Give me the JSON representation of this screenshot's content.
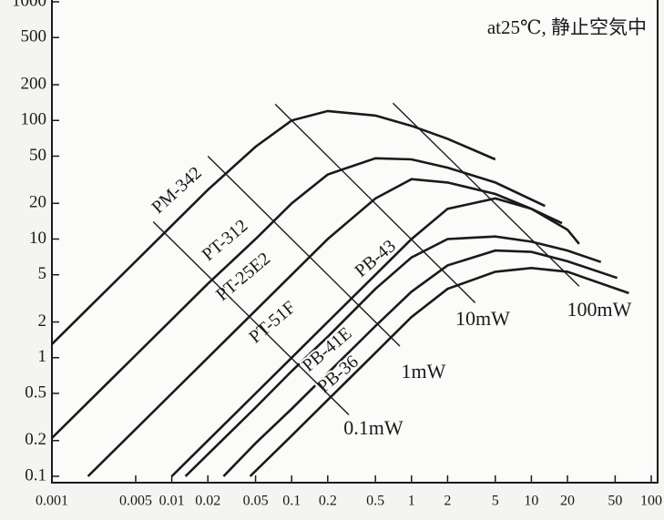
{
  "chart_data": {
    "type": "line",
    "log_x": true,
    "log_y": true,
    "annotation": "at25℃, 静止空気中",
    "xlim": [
      0.001,
      100
    ],
    "ylim": [
      0.1,
      1000
    ],
    "xticks": [
      0.001,
      0.005,
      0.01,
      0.02,
      0.05,
      0.1,
      0.2,
      0.5,
      1,
      2,
      5,
      10,
      20,
      50,
      100
    ],
    "yticks": [
      1000,
      500,
      200,
      100,
      50,
      20,
      10,
      5,
      2,
      1,
      0.5,
      0.2,
      0.1
    ],
    "series": [
      {
        "name": "PM-342",
        "color": "#1a1a1a",
        "x": [
          0.001,
          0.002,
          0.005,
          0.01,
          0.02,
          0.05,
          0.1,
          0.2,
          0.5,
          1,
          2,
          5
        ],
        "values": [
          1.3,
          2.6,
          6.5,
          13,
          26,
          60,
          100,
          120,
          110,
          90,
          70,
          47
        ]
      },
      {
        "name": "PT-312",
        "color": "#1a1a1a",
        "x": [
          0.001,
          0.002,
          0.005,
          0.01,
          0.02,
          0.05,
          0.1,
          0.2,
          0.5,
          1,
          2,
          5,
          13
        ],
        "values": [
          0.21,
          0.42,
          1.05,
          2.1,
          4.2,
          10,
          20,
          35,
          48,
          47,
          40,
          30,
          19
        ]
      },
      {
        "name": "PT-25E2",
        "color": "#1a1a1a",
        "x": [
          0.002,
          0.005,
          0.01,
          0.02,
          0.05,
          0.1,
          0.2,
          0.5,
          1,
          2,
          5,
          10,
          18
        ],
        "values": [
          0.1,
          0.25,
          0.5,
          1,
          2.5,
          5,
          10,
          22,
          32,
          30,
          24,
          18,
          13.6
        ]
      },
      {
        "name": "PT-51F",
        "color": "#1a1a1a",
        "x": [
          0.01,
          0.02,
          0.05,
          0.1,
          0.2,
          0.5,
          1,
          2,
          5,
          10,
          20,
          25
        ],
        "values": [
          0.1,
          0.2,
          0.5,
          1,
          2,
          5,
          10,
          18,
          22,
          18,
          12,
          9.1
        ]
      },
      {
        "name": "PB-43",
        "color": "#1a1a1a",
        "x": [
          0.013,
          0.05,
          0.1,
          0.2,
          0.5,
          1,
          2,
          5,
          10,
          20,
          38
        ],
        "values": [
          0.1,
          0.38,
          0.77,
          1.5,
          3.8,
          7,
          10,
          10.5,
          9.5,
          8,
          6.4
        ]
      },
      {
        "name": "PB-41E",
        "color": "#1a1a1a",
        "x": [
          0.027,
          0.05,
          0.1,
          0.2,
          0.5,
          1,
          2,
          5,
          10,
          20,
          52
        ],
        "values": [
          0.1,
          0.19,
          0.37,
          0.74,
          1.85,
          3.6,
          6,
          8,
          7.8,
          6.5,
          4.7
        ]
      },
      {
        "name": "PB-36",
        "color": "#1a1a1a",
        "x": [
          0.045,
          0.1,
          0.2,
          0.5,
          1,
          2,
          5,
          10,
          20,
          65
        ],
        "values": [
          0.1,
          0.22,
          0.44,
          1.1,
          2.2,
          3.8,
          5.3,
          5.7,
          5.3,
          3.5
        ]
      }
    ],
    "power_lines": [
      {
        "name": "0.1mW",
        "x": [
          0.007,
          0.3
        ],
        "values": [
          14,
          0.33
        ]
      },
      {
        "name": "1mW",
        "x": [
          0.02,
          0.8
        ],
        "values": [
          50,
          1.25
        ]
      },
      {
        "name": "10mW",
        "x": [
          0.073,
          3.4
        ],
        "values": [
          137,
          2.9
        ]
      },
      {
        "name": "100mW",
        "x": [
          0.7,
          25
        ],
        "values": [
          140,
          4
        ]
      }
    ]
  }
}
